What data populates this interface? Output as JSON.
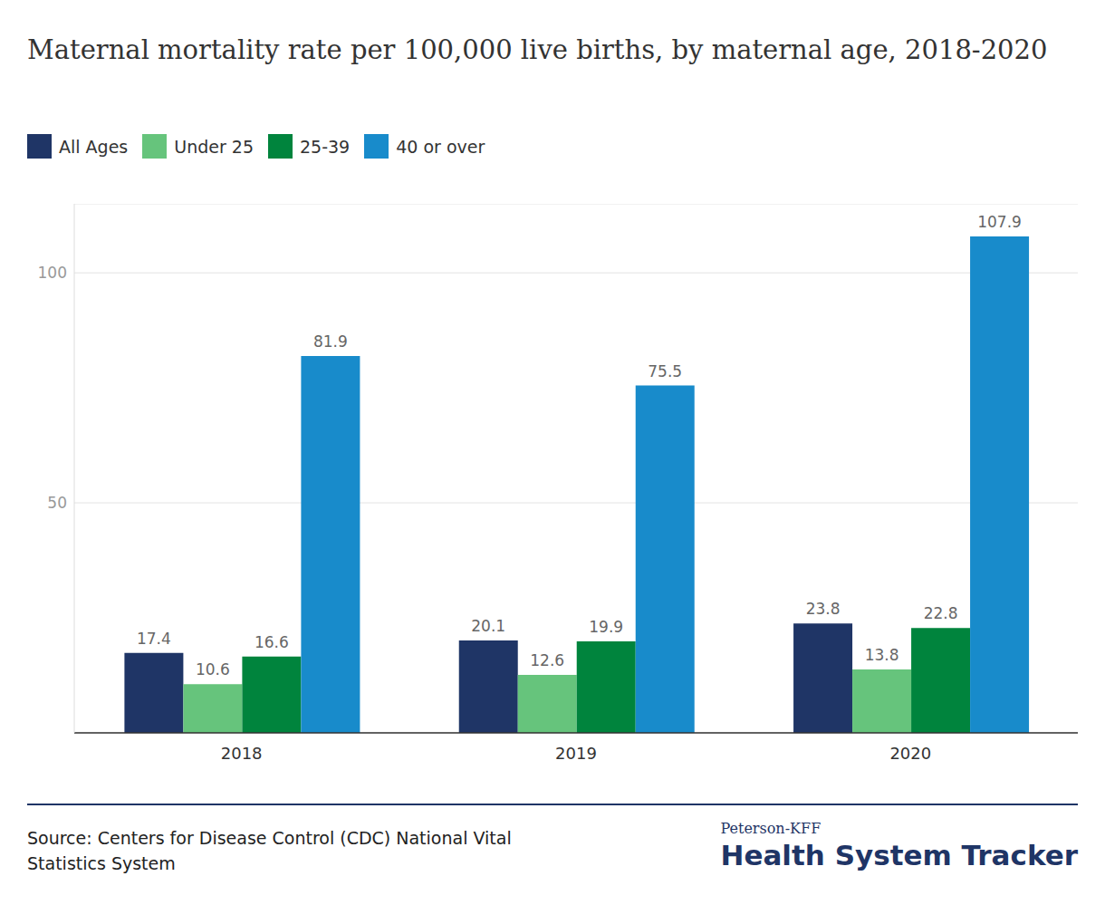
{
  "chart_data": {
    "type": "bar",
    "title": "Maternal mortality rate per 100,000 live births, by maternal age, 2018-2020",
    "categories": [
      "2018",
      "2019",
      "2020"
    ],
    "series": [
      {
        "name": "All Ages",
        "color": "#1f3566",
        "values": [
          17.4,
          20.1,
          23.8
        ]
      },
      {
        "name": "Under 25",
        "color": "#66c47c",
        "values": [
          10.6,
          12.6,
          13.8
        ]
      },
      {
        "name": "25-39",
        "color": "#00843d",
        "values": [
          16.6,
          19.9,
          22.8
        ]
      },
      {
        "name": "40 or over",
        "color": "#188bcb",
        "values": [
          81.9,
          75.5,
          107.9
        ]
      }
    ],
    "ylim": [
      0,
      115
    ],
    "yticks": [
      50,
      100
    ],
    "grid": true,
    "legend": "top-left",
    "data_labels": true,
    "source": "Source: Centers for Disease Control (CDC) National Vital Statistics System",
    "brand": "Peterson-KFF",
    "brand_name": "Health System Tracker"
  }
}
